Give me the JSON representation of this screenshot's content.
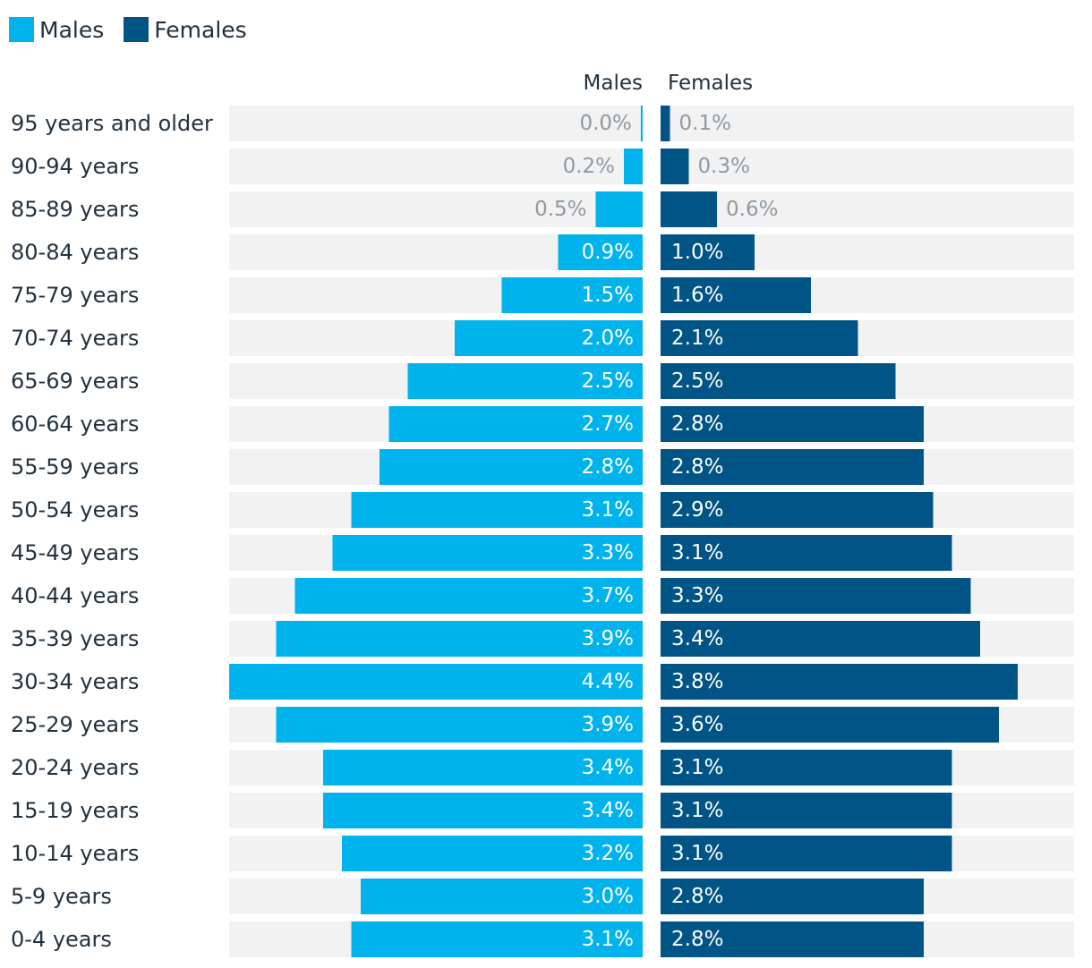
{
  "legend": {
    "males_label": "Males",
    "females_label": "Females",
    "males_color": "#00b3ec",
    "females_color": "#005486"
  },
  "chart_data": {
    "type": "bar",
    "subtype": "population-pyramid",
    "categories": [
      "95 years and older",
      "90-94 years",
      "85-89 years",
      "80-84 years",
      "75-79 years",
      "70-74 years",
      "65-69 years",
      "60-64 years",
      "55-59 years",
      "50-54 years",
      "45-49 years",
      "40-44 years",
      "35-39 years",
      "30-34 years",
      "25-29 years",
      "20-24 years",
      "15-19 years",
      "10-14 years",
      "5-9 years",
      "0-4 years"
    ],
    "series": [
      {
        "name": "Males",
        "color": "#00b3ec",
        "values": [
          0.02,
          0.2,
          0.5,
          0.9,
          1.5,
          2.0,
          2.5,
          2.7,
          2.8,
          3.1,
          3.3,
          3.7,
          3.9,
          4.4,
          3.9,
          3.4,
          3.4,
          3.2,
          3.0,
          3.1
        ],
        "labels": [
          "0.0%",
          "0.2%",
          "0.5%",
          "0.9%",
          "1.5%",
          "2.0%",
          "2.5%",
          "2.7%",
          "2.8%",
          "3.1%",
          "3.3%",
          "3.7%",
          "3.9%",
          "4.4%",
          "3.9%",
          "3.4%",
          "3.4%",
          "3.2%",
          "3.0%",
          "3.1%"
        ]
      },
      {
        "name": "Females",
        "color": "#005486",
        "values": [
          0.1,
          0.3,
          0.6,
          1.0,
          1.6,
          2.1,
          2.5,
          2.8,
          2.8,
          2.9,
          3.1,
          3.3,
          3.4,
          3.8,
          3.6,
          3.1,
          3.1,
          3.1,
          2.8,
          2.8
        ],
        "labels": [
          "0.1%",
          "0.3%",
          "0.6%",
          "1.0%",
          "1.6%",
          "2.1%",
          "2.5%",
          "2.8%",
          "2.8%",
          "2.9%",
          "3.1%",
          "3.3%",
          "3.4%",
          "3.8%",
          "3.6%",
          "3.1%",
          "3.1%",
          "3.1%",
          "2.8%",
          "2.8%"
        ]
      }
    ],
    "column_headers": [
      "Males",
      "Females"
    ],
    "xlim": [
      0,
      4.4
    ],
    "background_track_color": "#f2f2f2",
    "outside_label_color": "#8e99a4",
    "inside_label_color": "#ffffff",
    "category_label_color": "#22313f"
  }
}
